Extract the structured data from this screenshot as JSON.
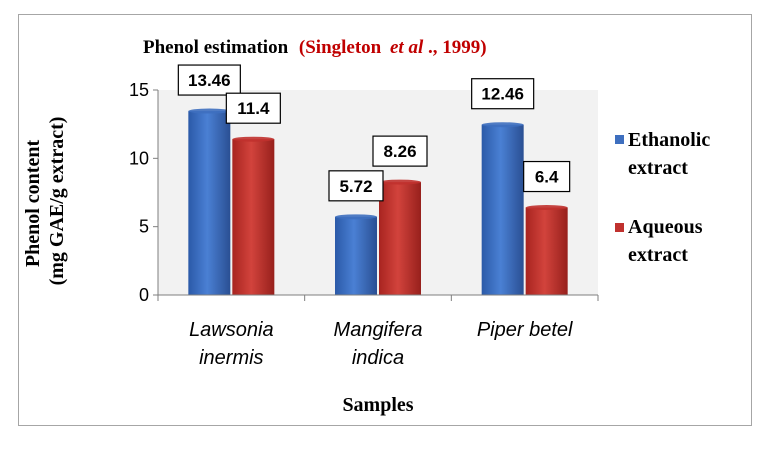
{
  "chart_data": {
    "type": "bar",
    "title": "Phenol estimation",
    "title_citation": "(Singleton",
    "title_citation_italic": "et al",
    "title_citation_end": "., 1999)",
    "ylabel_line1": "Phenol content",
    "ylabel_line2": "(mg GAE/g extract)",
    "xlabel": "Samples",
    "ylim": [
      0,
      15
    ],
    "yticks": [
      "0",
      "5",
      "10",
      "15"
    ],
    "categories": [
      {
        "line1": "Lawsonia",
        "line2": "inermis"
      },
      {
        "line1": "Mangifera",
        "line2": "indica"
      },
      {
        "line1": "Piper betel",
        "line2": ""
      }
    ],
    "series": [
      {
        "name_line1": "Ethanolic",
        "name_line2": "extract",
        "color": "#3e6fbf",
        "values": [
          13.46,
          5.72,
          12.46
        ],
        "labels": [
          "13.46",
          "5.72",
          "12.46"
        ]
      },
      {
        "name_line1": "Aqueous",
        "name_line2": "extract",
        "color": "#c0312e",
        "values": [
          11.4,
          8.26,
          6.4
        ],
        "labels": [
          "11.4",
          "8.26",
          "6.4"
        ]
      }
    ],
    "grid": false,
    "plot_background": "#f2f2f2",
    "legend_position": "right"
  }
}
